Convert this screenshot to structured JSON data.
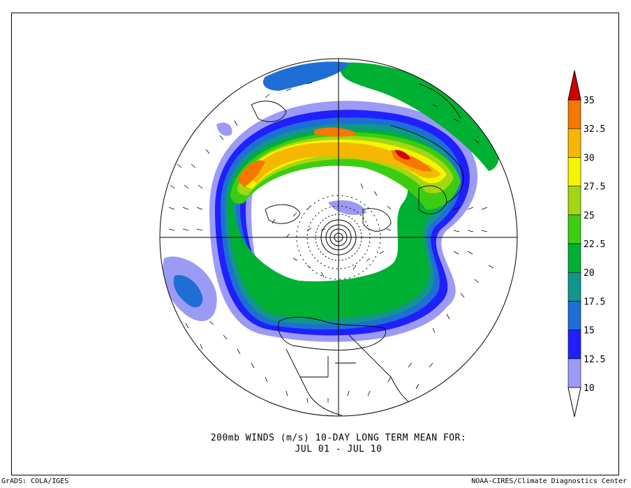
{
  "title_line1": "200mb WINDS (m/s)   10-DAY LONG TERM MEAN FOR:",
  "title_line2": "JUL 01 - JUL 10",
  "credit_left": "GrADS: COLA/IGES",
  "credit_right": "NOAA-CIRES/Climate Diagnostics Center",
  "projection": "north-polar-stereographic",
  "colorbar": {
    "levels": [
      "10",
      "12.5",
      "15",
      "17.5",
      "20",
      "22.5",
      "25",
      "27.5",
      "30",
      "32.5",
      "35"
    ],
    "colors": [
      "#9b9bf5",
      "#1f1fff",
      "#1f6ed6",
      "#11958c",
      "#00b033",
      "#3ccd12",
      "#a5d612",
      "#f5f500",
      "#f5b800",
      "#f57800",
      "#d40000"
    ]
  }
}
